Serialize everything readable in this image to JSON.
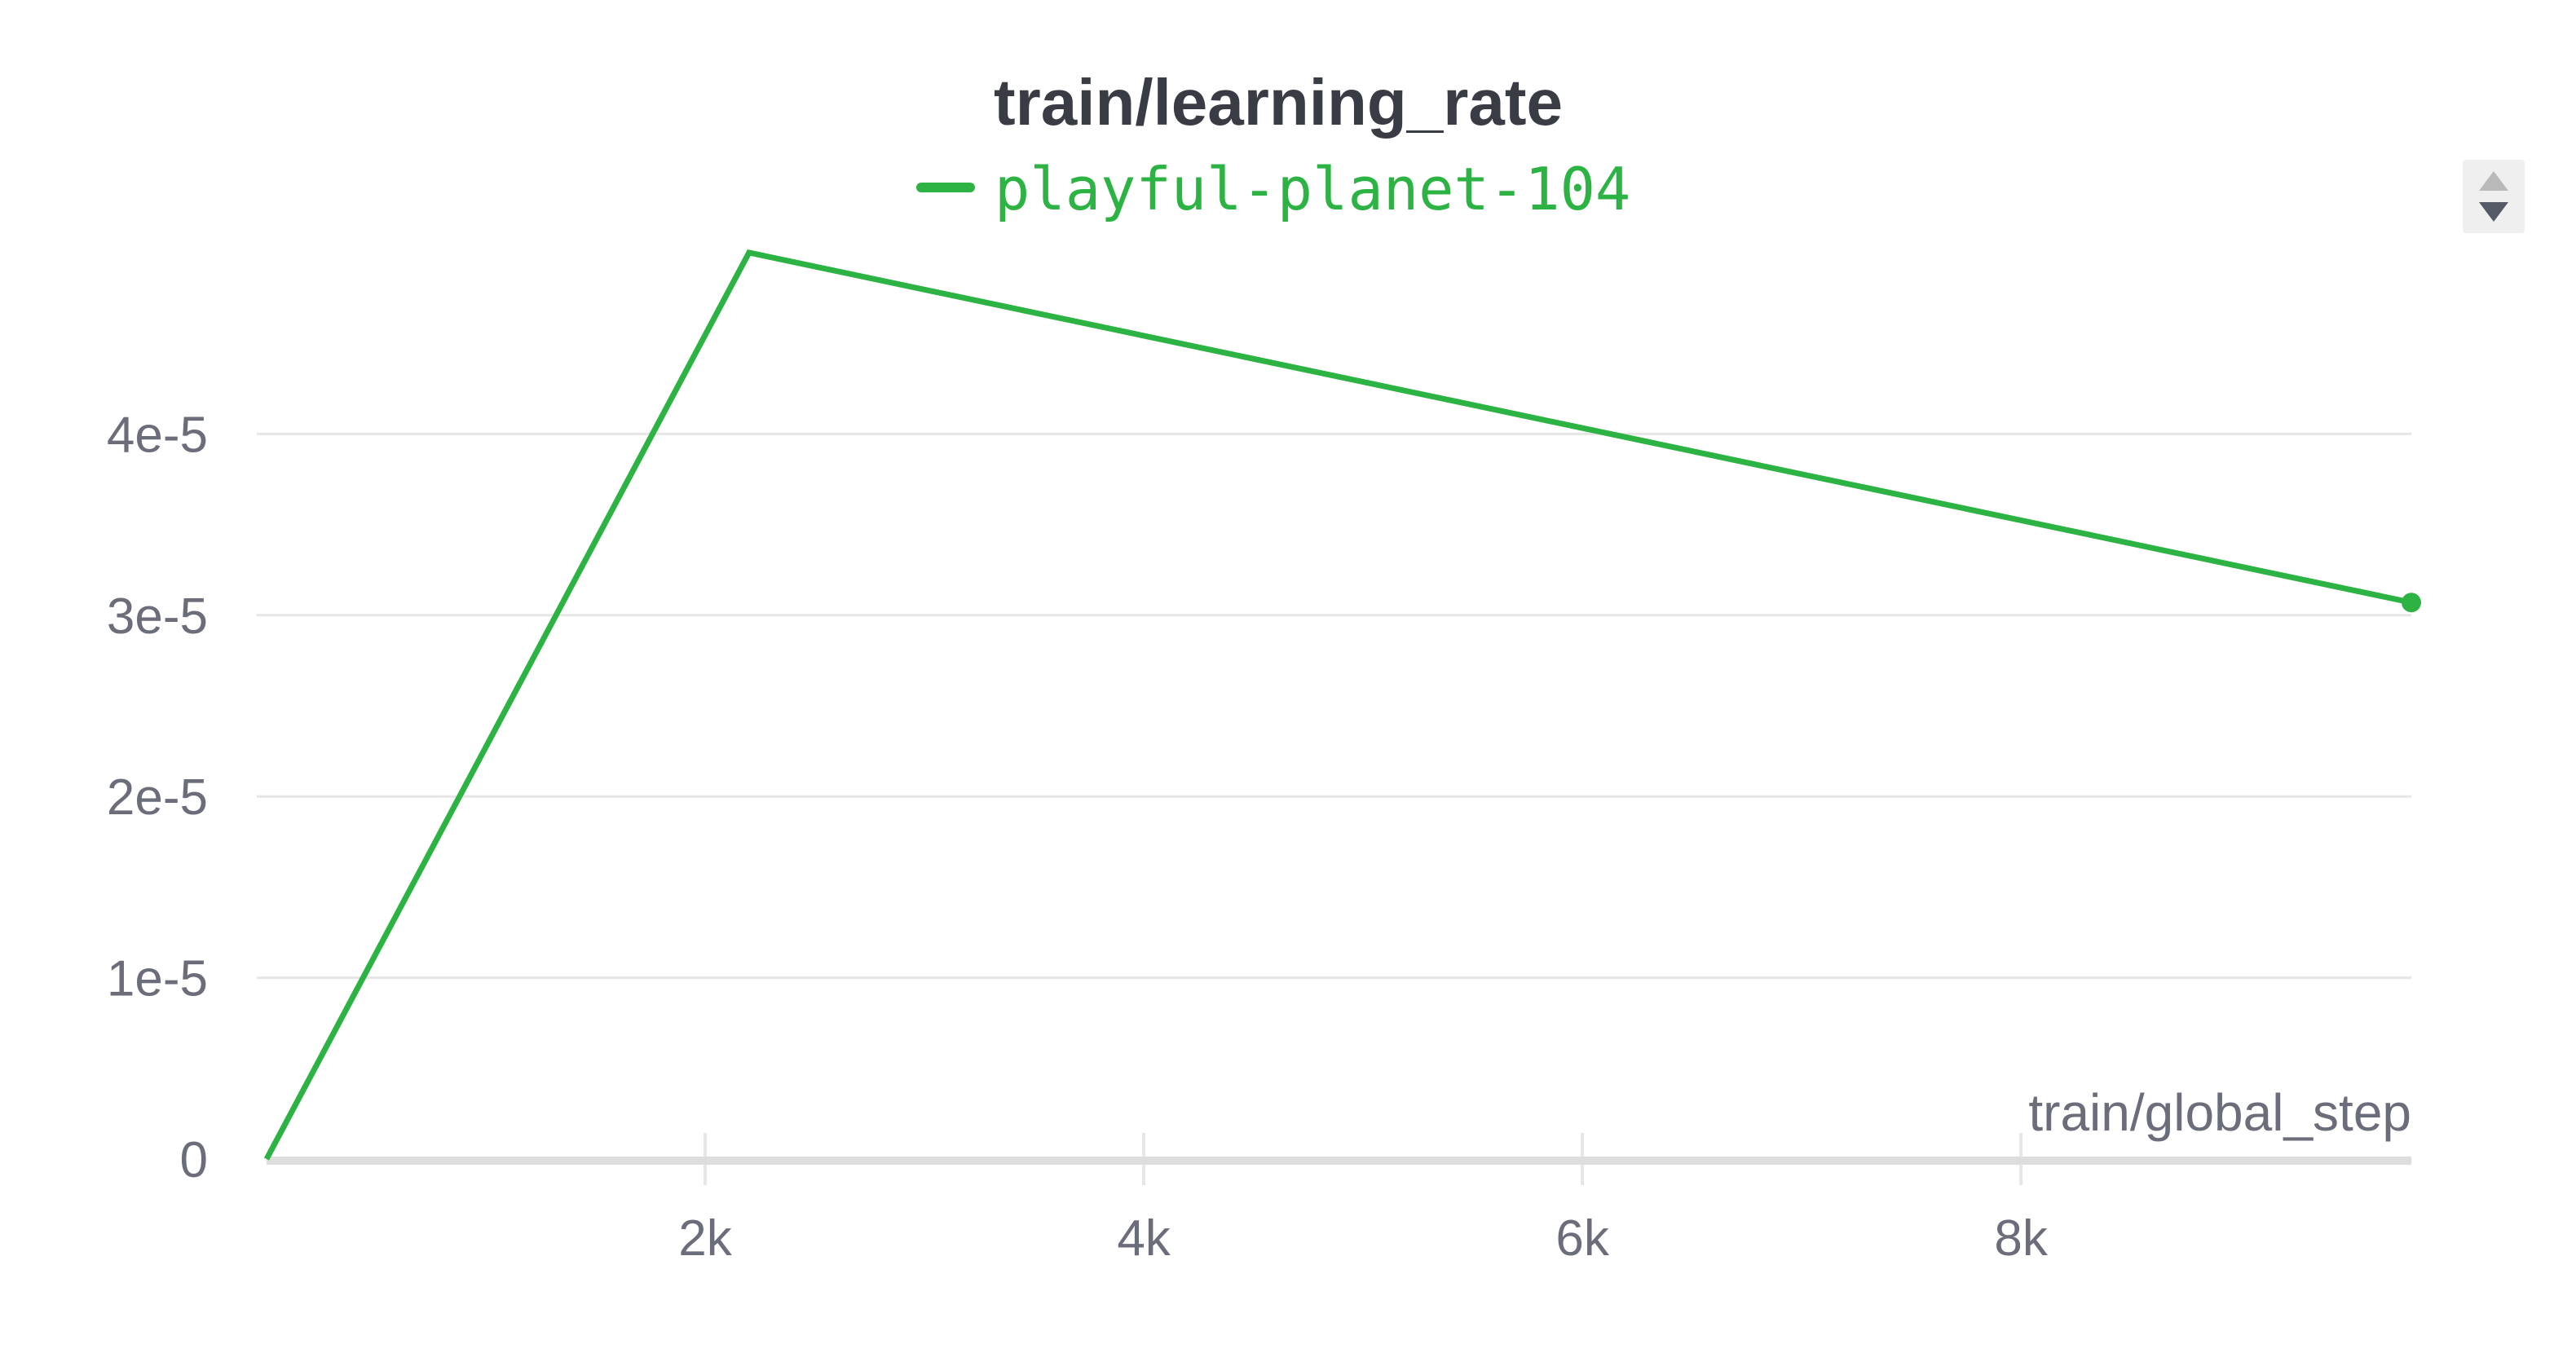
{
  "chart_data": {
    "type": "line",
    "title": "train/learning_rate",
    "xlabel": "train/global_step",
    "ylabel": "",
    "legend": {
      "placement": "top-center"
    },
    "grid": true,
    "xlim": [
      0,
      9780
    ],
    "ylim": [
      0,
      5e-05
    ],
    "x_ticks": [
      {
        "value": 2000,
        "label": "2k"
      },
      {
        "value": 4000,
        "label": "4k"
      },
      {
        "value": 6000,
        "label": "6k"
      },
      {
        "value": 8000,
        "label": "8k"
      }
    ],
    "y_ticks": [
      {
        "value": 0,
        "label": "0"
      },
      {
        "value": 1e-05,
        "label": "1e-5"
      },
      {
        "value": 2e-05,
        "label": "2e-5"
      },
      {
        "value": 3e-05,
        "label": "3e-5"
      },
      {
        "value": 4e-05,
        "label": "4e-5"
      }
    ],
    "series": [
      {
        "name": "playful-planet-104",
        "color": "#2db343",
        "x": [
          0,
          2200,
          9780
        ],
        "y": [
          0,
          5e-05,
          3.07e-05
        ]
      }
    ]
  },
  "colors": {
    "title": "#3a3c45",
    "axis_text": "#6b6e7a",
    "grid": "#e6e6e6",
    "axis": "#dddddd"
  },
  "controls": {
    "stepper_icons": [
      "arrow-up-icon",
      "arrow-down-icon"
    ]
  }
}
